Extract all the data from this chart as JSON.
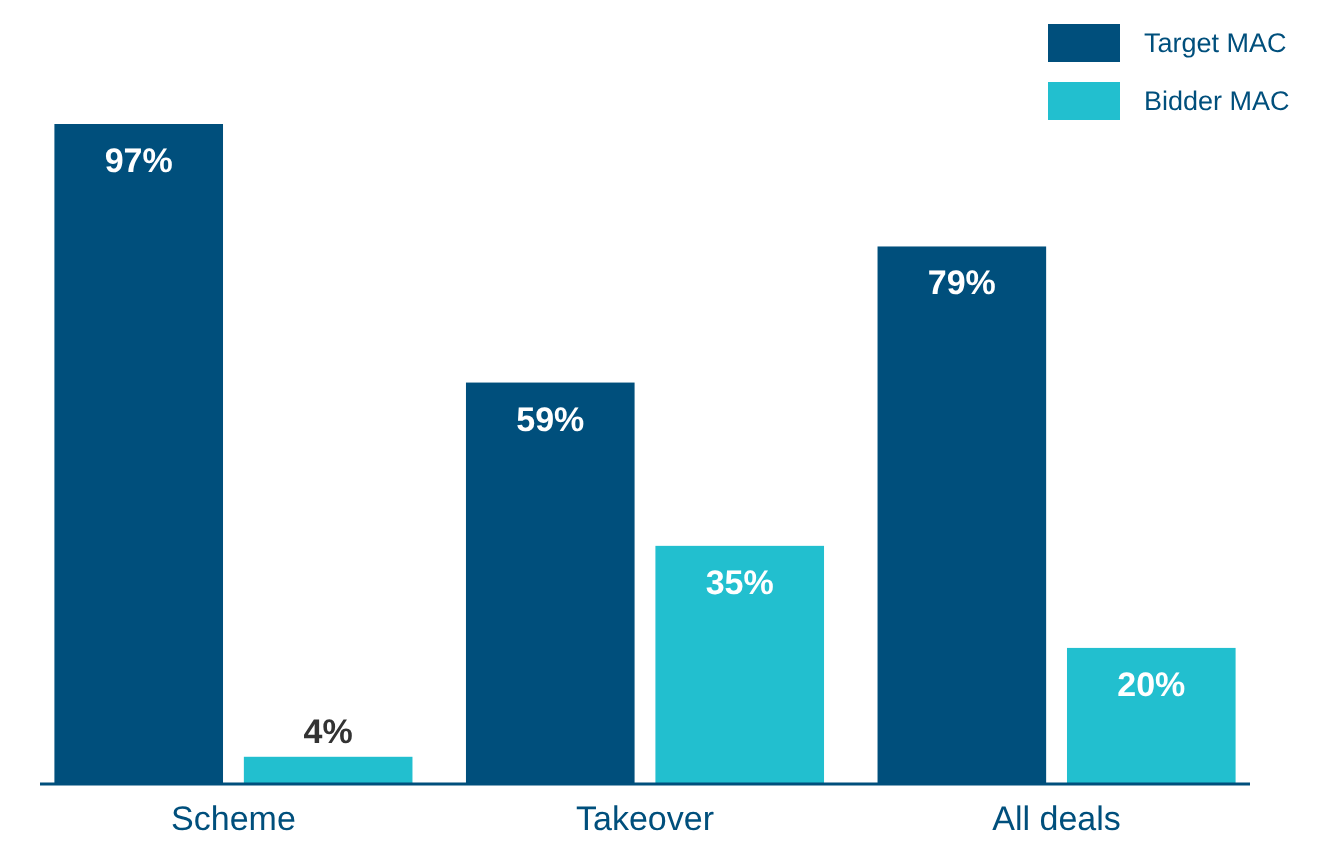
{
  "chart_data": {
    "type": "bar",
    "categories": [
      "Scheme",
      "Takeover",
      "All deals"
    ],
    "series": [
      {
        "name": "Target MAC",
        "color": "#004f7c",
        "values": [
          97,
          59,
          79
        ],
        "value_labels": [
          "97%",
          "59%",
          "79%"
        ]
      },
      {
        "name": "Bidder MAC",
        "color": "#22bfcf",
        "values": [
          4,
          35,
          20
        ],
        "value_labels": [
          "4%",
          "35%",
          "20%"
        ]
      }
    ],
    "legend": "top right"
  }
}
